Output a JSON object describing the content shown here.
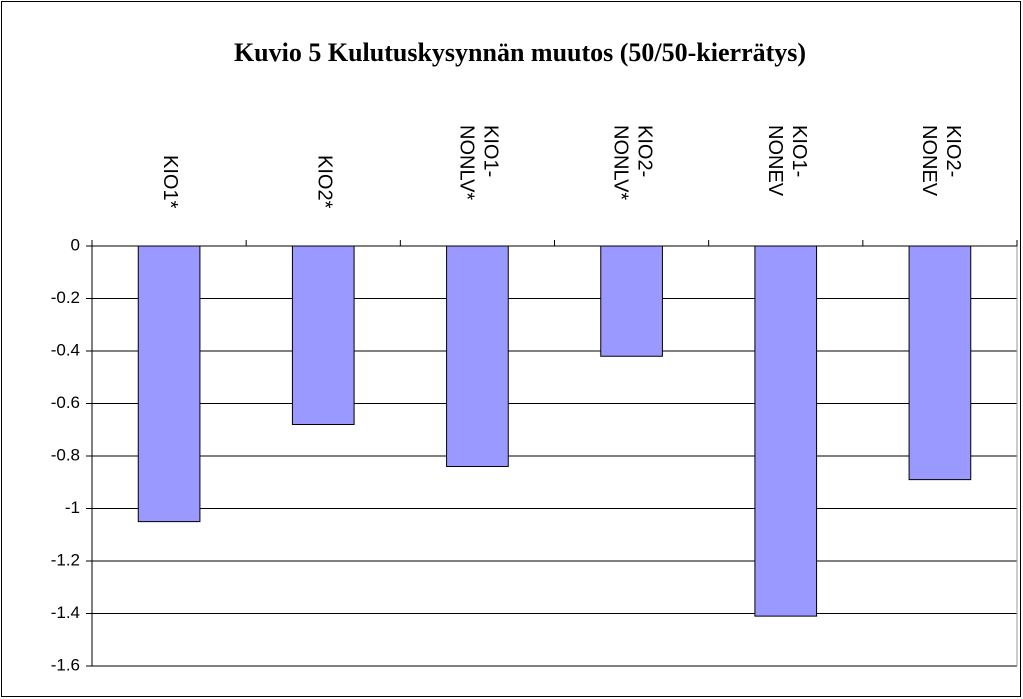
{
  "chart_data": {
    "type": "bar",
    "title": "Kuvio 5 Kulutuskysynnän muutos (50/50-kierrätys)",
    "categories": [
      "KIO1*",
      "KIO2*",
      "KIO1-NONLV*",
      "KIO2-NONLV*",
      "KIO1-NONEV",
      "KIO2-NONEV"
    ],
    "values": [
      -1.05,
      -0.68,
      -0.84,
      -0.42,
      -1.41,
      -0.89
    ],
    "color": "#9999ff",
    "ylim": [
      -1.6,
      0
    ],
    "yticks": [
      0,
      -0.2,
      -0.4,
      -0.6,
      -0.8,
      -1,
      -1.2,
      -1.4,
      -1.6
    ],
    "grid": true
  }
}
